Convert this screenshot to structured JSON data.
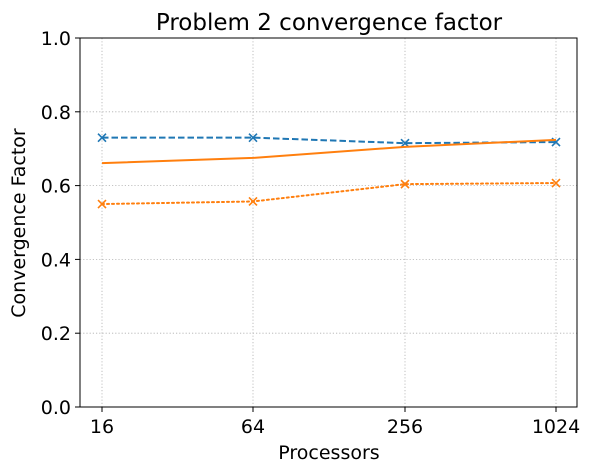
{
  "chart_data": {
    "type": "line",
    "title": "Problem 2 convergence factor",
    "xlabel": "Processors",
    "ylabel": "Convergence Factor",
    "categories": [
      "16",
      "64",
      "256",
      "1024"
    ],
    "ylim": [
      0.0,
      1.0
    ],
    "yticks": [
      "0.0",
      "0.2",
      "0.4",
      "0.6",
      "0.8",
      "1.0"
    ],
    "grid": true,
    "legend": "none",
    "series": [
      {
        "color": "#1f77b4",
        "linestyle": "dashed",
        "marker": "x",
        "values": [
          0.73,
          0.73,
          0.715,
          0.718
        ]
      },
      {
        "color": "#ff7f0e",
        "linestyle": "solid",
        "marker": "none",
        "values": [
          0.661,
          0.675,
          0.705,
          0.724
        ]
      },
      {
        "color": "#ff7f0e",
        "linestyle": "dotted",
        "marker": "x",
        "values": [
          0.55,
          0.557,
          0.604,
          0.607
        ]
      }
    ]
  }
}
